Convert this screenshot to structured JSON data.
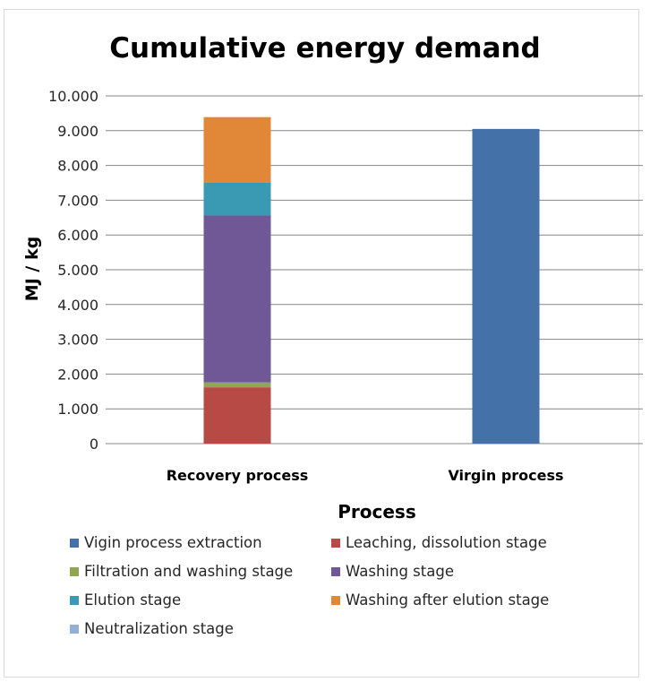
{
  "chart_data": {
    "type": "bar",
    "stacked": true,
    "title": "Cumulative energy demand",
    "xlabel": "Process",
    "ylabel": "MJ / kg",
    "ylim": [
      0,
      10000
    ],
    "y_ticks": [
      "0",
      "1.000",
      "2.000",
      "3.000",
      "4.000",
      "5.000",
      "6.000",
      "7.000",
      "8.000",
      "9.000",
      "10.000"
    ],
    "categories": [
      "Recovery process",
      "Virgin process"
    ],
    "grid": true,
    "legend_position": "bottom",
    "series": [
      {
        "name": "Vigin process extraction",
        "color": "#4472a8",
        "values": [
          0,
          9050
        ]
      },
      {
        "name": "Leaching, dissolution stage",
        "color": "#b84a46",
        "values": [
          1620,
          0
        ]
      },
      {
        "name": "Filtration and washing stage",
        "color": "#8ea755",
        "values": [
          140,
          0
        ]
      },
      {
        "name": "Washing stage",
        "color": "#6f5895",
        "values": [
          4800,
          0
        ]
      },
      {
        "name": "Elution stage",
        "color": "#3a99b3",
        "values": [
          950,
          0
        ]
      },
      {
        "name": "Washing after elution stage",
        "color": "#e08838",
        "values": [
          1880,
          0
        ]
      },
      {
        "name": "Neutralization stage",
        "color": "#93afd6",
        "values": [
          0,
          0
        ]
      }
    ]
  }
}
